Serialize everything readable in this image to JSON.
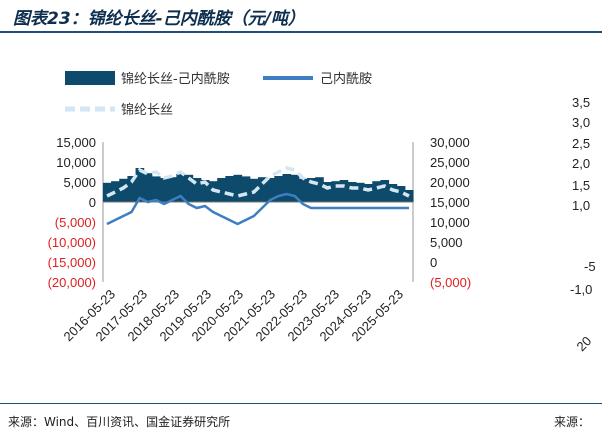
{
  "figure": {
    "title": "图表23：锦纶长丝-己内酰胺（元/吨）",
    "source": "来源：Wind、百川资讯、国金证券研究所",
    "source_right": "来源："
  },
  "colors": {
    "spread_bar": "#0d4a6b",
    "caprolactam_line": "#3d7fc1",
    "nylon_line": "#d5e6f3",
    "negative_tick": "#e02020",
    "rule": "#1f4e79"
  },
  "right_clipped_ticks": [
    "3,5",
    "3,0",
    "2,5",
    "2,0",
    "1,5",
    "1,0",
    "-5",
    "-1,0",
    "20"
  ],
  "chart_data": {
    "type": "bar+line",
    "x_tick_labels": [
      "2016-05-23",
      "2017-05-23",
      "2018-05-23",
      "2019-05-23",
      "2020-05-23",
      "2021-05-23",
      "2022-05-23",
      "2023-05-23",
      "2024-05-23",
      "2025-05-23"
    ],
    "x": [
      "2016-05",
      "2016-08",
      "2016-11",
      "2017-02",
      "2017-05",
      "2017-08",
      "2017-11",
      "2018-02",
      "2018-05",
      "2018-08",
      "2018-11",
      "2019-02",
      "2019-05",
      "2019-08",
      "2019-11",
      "2020-02",
      "2020-05",
      "2020-08",
      "2020-11",
      "2021-02",
      "2021-05",
      "2021-08",
      "2021-11",
      "2022-02",
      "2022-05",
      "2022-08",
      "2022-11",
      "2023-02",
      "2023-05",
      "2023-08",
      "2023-11",
      "2024-02",
      "2024-05",
      "2024-08",
      "2024-11",
      "2025-02",
      "2025-05",
      "2025-08"
    ],
    "left_axis": {
      "ylim": [
        -20000,
        15000
      ],
      "ticks": [
        "15,000",
        "10,000",
        "5,000",
        "0",
        "(5,000)",
        "(10,000)",
        "(15,000)",
        "(20,000)"
      ]
    },
    "right_axis": {
      "ylim": [
        -5000,
        30000
      ],
      "ticks": [
        "30,000",
        "25,000",
        "20,000",
        "15,000",
        "10,000",
        "5,000",
        "0",
        "(5,000)"
      ]
    },
    "series": [
      {
        "name": "锦纶长丝-己内酰胺",
        "kind": "bar",
        "axis": "left",
        "values": [
          4800,
          5200,
          5800,
          6500,
          8500,
          7200,
          6400,
          6000,
          6200,
          7000,
          6800,
          6000,
          5500,
          5200,
          6000,
          6500,
          6800,
          6400,
          5800,
          6200,
          6000,
          6500,
          7000,
          6800,
          5800,
          6000,
          6200,
          5000,
          5200,
          5500,
          5000,
          4800,
          4500,
          5200,
          5500,
          4500,
          4000,
          3000
        ]
      },
      {
        "name": "己内酰胺",
        "kind": "line",
        "axis": "right",
        "values": [
          9500,
          10500,
          11500,
          12500,
          16000,
          15000,
          15500,
          14500,
          15500,
          16500,
          14500,
          13500,
          14000,
          12500,
          11500,
          10500,
          9500,
          10500,
          11500,
          13500,
          15500,
          16500,
          17000,
          16500,
          14500,
          13500,
          13500,
          13500,
          13500,
          13500,
          13500,
          13500,
          13500,
          13500,
          13500,
          13500,
          13500,
          13500
        ]
      },
      {
        "name": "锦纶长丝",
        "kind": "line",
        "dashed": true,
        "axis": "right",
        "values": [
          16500,
          17500,
          18500,
          20000,
          23000,
          22000,
          22500,
          21000,
          21500,
          22500,
          21000,
          19500,
          20000,
          18000,
          17500,
          17000,
          16500,
          17000,
          17500,
          19500,
          21500,
          22500,
          23500,
          23000,
          21000,
          20000,
          19500,
          18500,
          19000,
          19000,
          18500,
          18500,
          18000,
          18500,
          19000,
          18000,
          17500,
          16500
        ]
      }
    ],
    "legend_position": "top-left",
    "grid": false
  }
}
